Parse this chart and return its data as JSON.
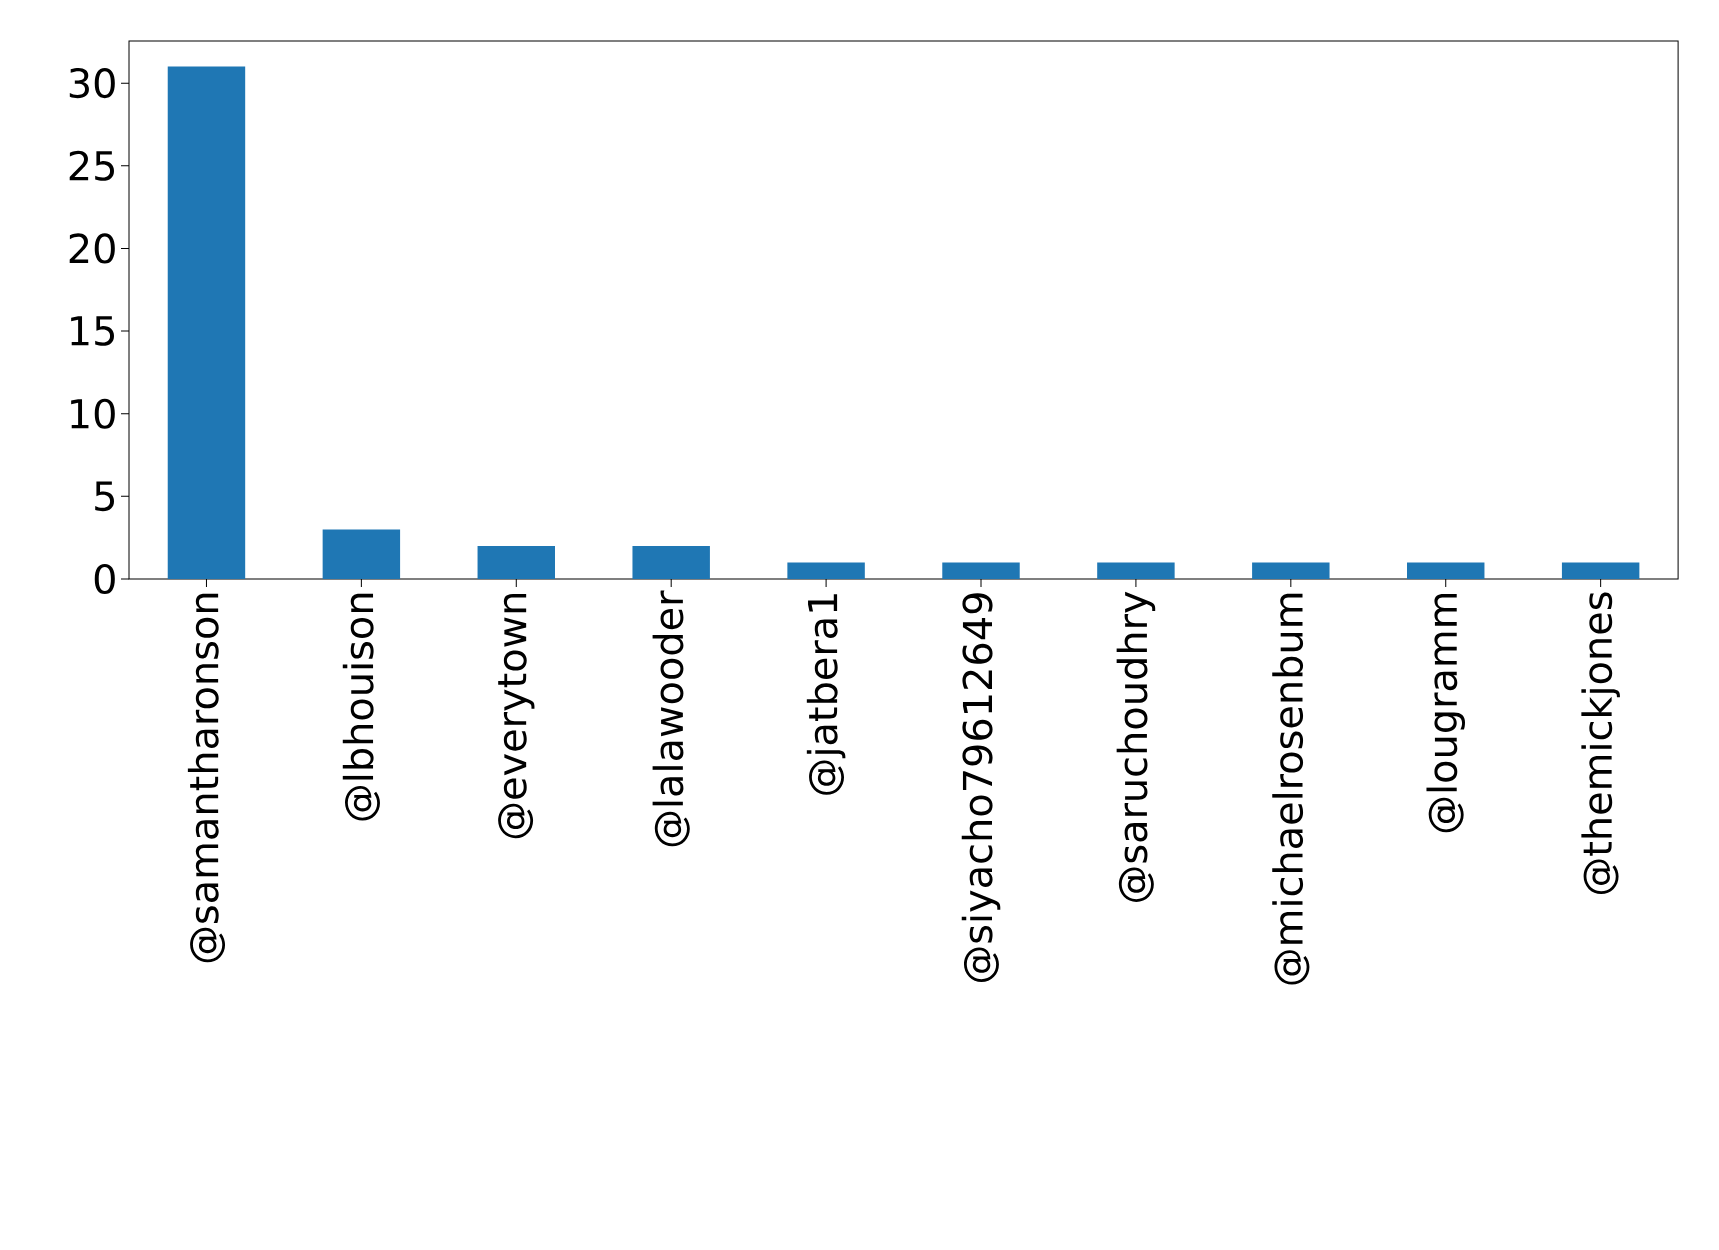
{
  "chart_data": {
    "type": "bar",
    "categories": [
      "@samantharonson",
      "@lbhouison",
      "@everytown",
      "@lalawooder",
      "@jatbera1",
      "@siyacho79612649",
      "@saruchoudhry",
      "@michaelrosenbum",
      "@lougramm",
      "@themickjones"
    ],
    "values": [
      31,
      3,
      2,
      2,
      1,
      1,
      1,
      1,
      1,
      1
    ],
    "color": "#1f77b4",
    "ylim": [
      0,
      32.55
    ],
    "yticks": [
      0,
      5,
      10,
      15,
      20,
      25,
      30
    ]
  }
}
